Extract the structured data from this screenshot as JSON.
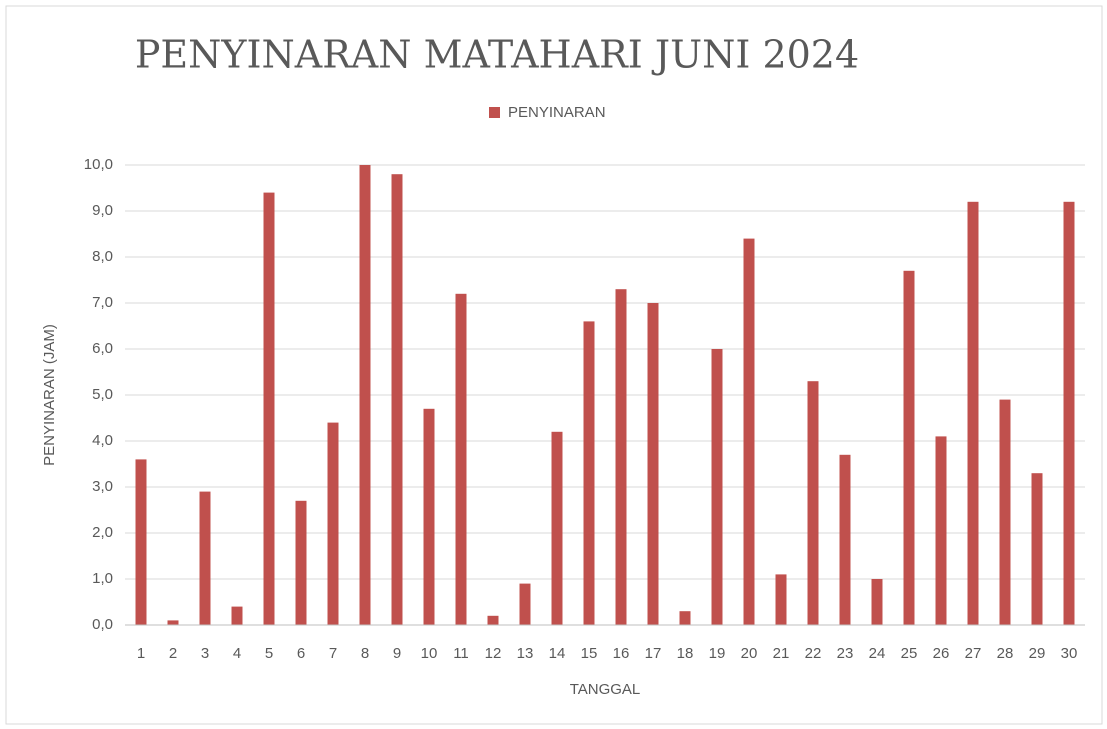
{
  "chart_data": {
    "type": "bar",
    "title": "PENYINARAN MATAHARI JUNI 2024",
    "x_label": "TANGGAL",
    "y_label": "PENYINARAN (JAM)",
    "categories": [
      "1",
      "2",
      "3",
      "4",
      "5",
      "6",
      "7",
      "8",
      "9",
      "10",
      "11",
      "12",
      "13",
      "14",
      "15",
      "16",
      "17",
      "18",
      "19",
      "20",
      "21",
      "22",
      "23",
      "24",
      "25",
      "26",
      "27",
      "28",
      "29",
      "30"
    ],
    "series": [
      {
        "name": "PENYINARAN",
        "color": "#c0504d",
        "values": [
          3.6,
          0.1,
          2.9,
          0.4,
          9.4,
          2.7,
          4.4,
          10.0,
          9.8,
          4.7,
          7.2,
          0.2,
          0.9,
          4.2,
          6.6,
          7.3,
          7.0,
          0.3,
          6.0,
          8.4,
          1.1,
          5.3,
          3.7,
          1.0,
          7.7,
          4.1,
          9.2,
          4.9,
          3.3,
          9.2
        ]
      }
    ],
    "ylim": [
      0,
      10
    ],
    "yticks": [
      {
        "value": 0,
        "label": "0,0"
      },
      {
        "value": 1,
        "label": "1,0"
      },
      {
        "value": 2,
        "label": "2,0"
      },
      {
        "value": 3,
        "label": "3,0"
      },
      {
        "value": 4,
        "label": "4,0"
      },
      {
        "value": 5,
        "label": "5,0"
      },
      {
        "value": 6,
        "label": "6,0"
      },
      {
        "value": 7,
        "label": "7,0"
      },
      {
        "value": 8,
        "label": "8,0"
      },
      {
        "value": 9,
        "label": "9,0"
      },
      {
        "value": 10,
        "label": "10,0"
      }
    ],
    "grid": true,
    "legend": "top"
  }
}
